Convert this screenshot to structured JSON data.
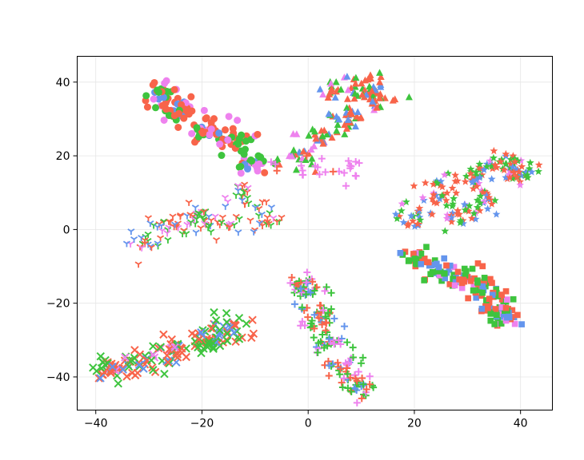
{
  "chart_data": {
    "type": "scatter",
    "title": "",
    "xlabel": "",
    "ylabel": "",
    "xlim": [
      -43.5,
      46
    ],
    "ylim": [
      -49,
      47
    ],
    "grid": true,
    "legend": "none",
    "x_ticks": [
      -40,
      -20,
      0,
      20,
      40
    ],
    "y_ticks": [
      -40,
      -20,
      0,
      20,
      40
    ],
    "x_tick_labels": [
      "−40",
      "−20",
      "0",
      "20",
      "40"
    ],
    "y_tick_labels": [
      "−40",
      "−20",
      "0",
      "20",
      "40"
    ],
    "colors": {
      "red": "#f8644a",
      "green": "#3ec43e",
      "blue": "#6495ed",
      "violet": "#ee82ee"
    },
    "clusters": [
      {
        "marker": "circle",
        "cx": -23,
        "cy": 30,
        "sx": 4,
        "sy": 4,
        "n": 160,
        "colors": [
          "red",
          "green",
          "blue",
          "violet"
        ],
        "weights": [
          0.4,
          0.3,
          0.1,
          0.2
        ],
        "center_pts": [
          [
            -27,
            36
          ],
          [
            -24,
            32
          ],
          [
            -20,
            27
          ],
          [
            -14,
            24
          ],
          [
            -11,
            19
          ]
        ]
      },
      {
        "marker": "triangle",
        "cx": 7,
        "cy": 33,
        "sx": 5,
        "sy": 6,
        "n": 150,
        "colors": [
          "red",
          "green",
          "blue",
          "violet"
        ],
        "weights": [
          0.35,
          0.35,
          0.2,
          0.1
        ],
        "center_pts": [
          [
            4,
            38
          ],
          [
            10,
            39
          ],
          [
            13,
            36
          ],
          [
            7,
            30
          ],
          [
            2,
            25
          ],
          [
            -2,
            20
          ]
        ]
      },
      {
        "marker": "cross_plus",
        "cx": 2,
        "cy": 17,
        "sx": 3,
        "sy": 2,
        "n": 25,
        "colors": [
          "violet",
          "red"
        ],
        "weights": [
          0.8,
          0.2
        ],
        "center_pts": [
          [
            -6,
            18
          ],
          [
            0,
            17
          ],
          [
            5,
            16
          ],
          [
            8,
            16
          ]
        ]
      },
      {
        "marker": "tri_down",
        "cx": -22,
        "cy": 1,
        "sx": 6,
        "sy": 3,
        "n": 140,
        "colors": [
          "red",
          "green",
          "blue",
          "violet"
        ],
        "weights": [
          0.35,
          0.3,
          0.25,
          0.1
        ],
        "center_pts": [
          [
            -31,
            -4
          ],
          [
            -26,
            1
          ],
          [
            -21,
            3
          ],
          [
            -17,
            1
          ],
          [
            -12,
            9
          ],
          [
            -9,
            3
          ]
        ]
      },
      {
        "marker": "x",
        "cx": -25,
        "cy": -35,
        "sx": 6,
        "sy": 3,
        "n": 180,
        "colors": [
          "red",
          "green",
          "blue",
          "violet"
        ],
        "weights": [
          0.35,
          0.35,
          0.2,
          0.1
        ],
        "center_pts": [
          [
            -37,
            -37
          ],
          [
            -31,
            -36
          ],
          [
            -25,
            -33
          ],
          [
            -19,
            -30
          ],
          [
            -15,
            -27
          ]
        ]
      },
      {
        "marker": "plus",
        "cx": 6,
        "cy": -32,
        "sx": 3,
        "sy": 6,
        "n": 170,
        "colors": [
          "red",
          "green",
          "blue",
          "violet"
        ],
        "weights": [
          0.3,
          0.35,
          0.2,
          0.15
        ],
        "center_pts": [
          [
            -1,
            -16
          ],
          [
            2,
            -24
          ],
          [
            4,
            -31
          ],
          [
            7,
            -37
          ],
          [
            9,
            -42
          ]
        ]
      },
      {
        "marker": "star",
        "cx": 30,
        "cy": 10,
        "sx": 5,
        "sy": 4,
        "n": 190,
        "colors": [
          "red",
          "green",
          "blue",
          "violet"
        ],
        "weights": [
          0.35,
          0.35,
          0.2,
          0.1
        ],
        "center_pts": [
          [
            20,
            3
          ],
          [
            25,
            11
          ],
          [
            31,
            15
          ],
          [
            36,
            18
          ],
          [
            40,
            15
          ],
          [
            33,
            8
          ],
          [
            28,
            4
          ]
        ]
      },
      {
        "marker": "square",
        "cx": 30,
        "cy": -16,
        "sx": 4,
        "sy": 3,
        "n": 180,
        "colors": [
          "red",
          "green",
          "blue",
          "violet"
        ],
        "weights": [
          0.3,
          0.35,
          0.25,
          0.1
        ],
        "center_pts": [
          [
            20,
            -8
          ],
          [
            25,
            -11
          ],
          [
            30,
            -14
          ],
          [
            33,
            -16
          ],
          [
            37,
            -22
          ],
          [
            37,
            -24
          ]
        ]
      }
    ]
  }
}
